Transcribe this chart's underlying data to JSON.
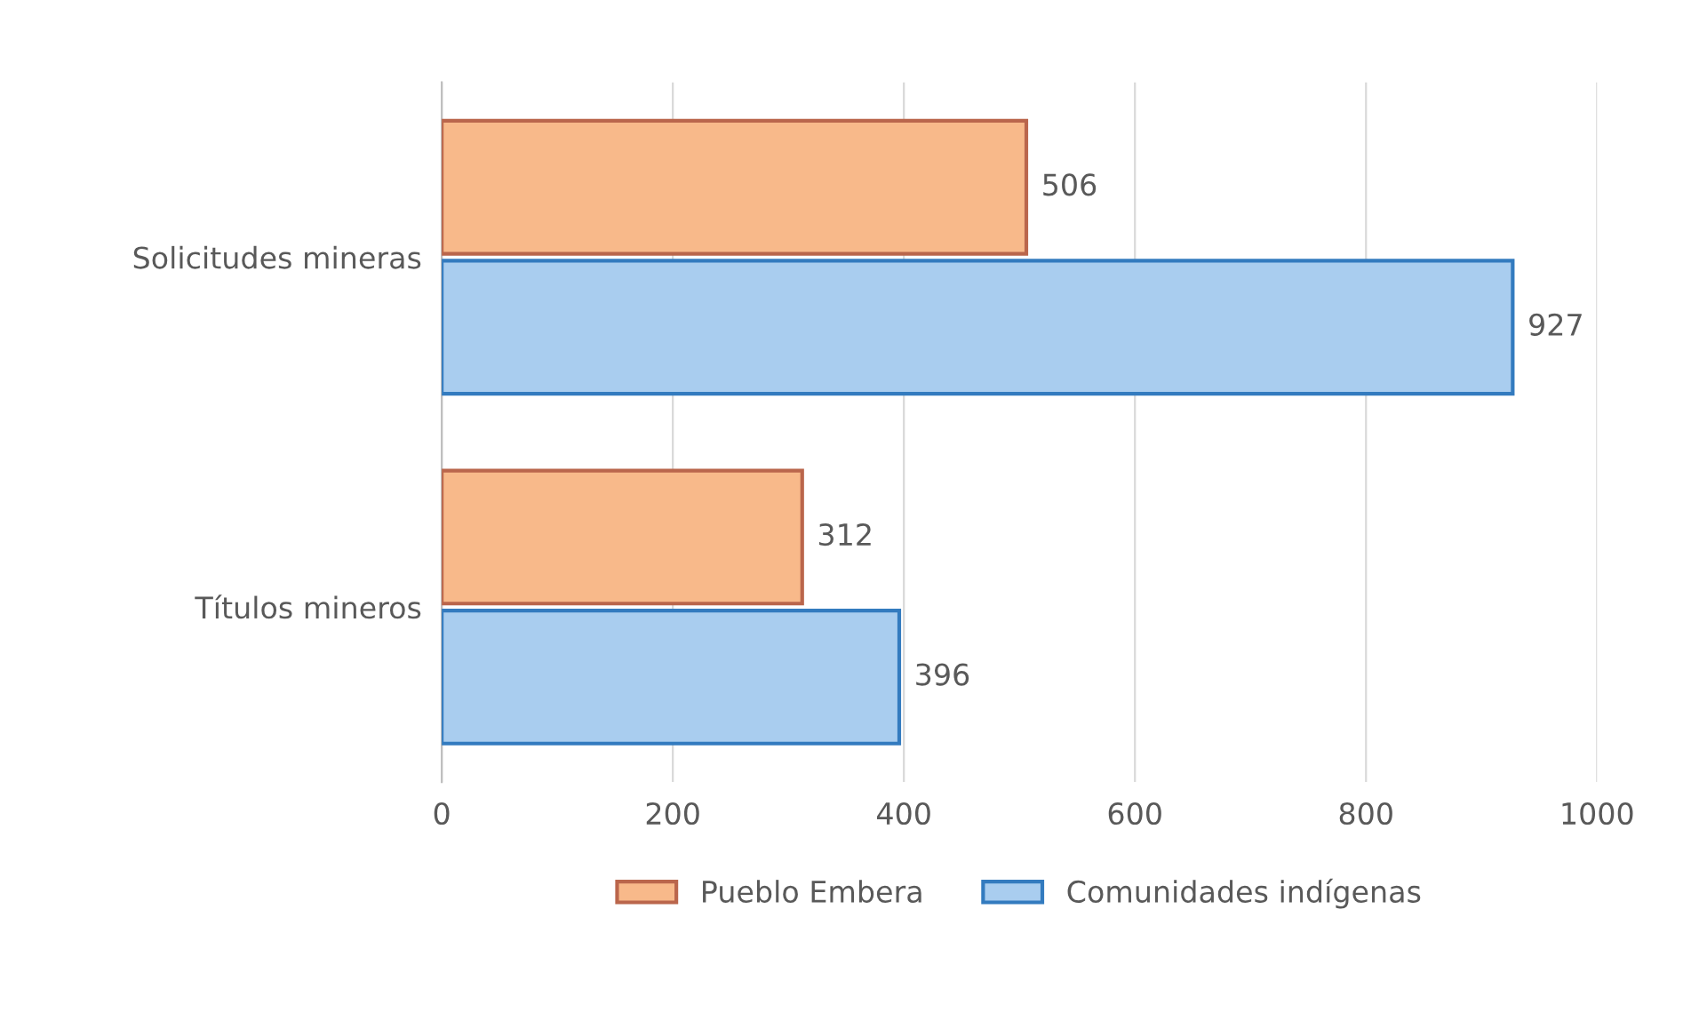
{
  "chart_data": {
    "type": "bar",
    "orientation": "horizontal",
    "categories": [
      "Solicitudes mineras",
      "Títulos mineros"
    ],
    "series": [
      {
        "name": "Pueblo Embera",
        "color": "#f8b98a",
        "values": [
          506,
          312
        ]
      },
      {
        "name": "Comunidades indígenas",
        "color": "#a9cdef",
        "values": [
          927,
          396
        ]
      }
    ],
    "xlim": [
      0,
      1000
    ],
    "xticks": [
      0,
      200,
      400,
      600,
      800,
      1000
    ],
    "grid": "x",
    "legend": "bottom",
    "data_labels": true
  }
}
